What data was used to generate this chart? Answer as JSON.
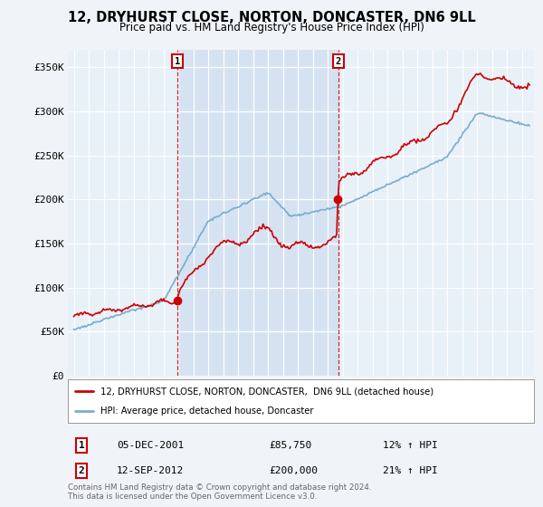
{
  "title": "12, DRYHURST CLOSE, NORTON, DONCASTER, DN6 9LL",
  "subtitle": "Price paid vs. HM Land Registry's House Price Index (HPI)",
  "ylim": [
    0,
    370000
  ],
  "yticks": [
    0,
    50000,
    100000,
    150000,
    200000,
    250000,
    300000,
    350000
  ],
  "ytick_labels": [
    "£0",
    "£50K",
    "£100K",
    "£150K",
    "£200K",
    "£250K",
    "£300K",
    "£350K"
  ],
  "background_color": "#f0f4f8",
  "plot_bg_color": "#e8f0f8",
  "grid_color": "#ffffff",
  "shade_color": "#ccddf0",
  "sale1_year": 2001.92,
  "sale1_price": 85750,
  "sale2_year": 2012.71,
  "sale2_price": 200000,
  "red_color": "#cc0000",
  "blue_color": "#7aaccc",
  "legend_label1": "12, DRYHURST CLOSE, NORTON, DONCASTER,  DN6 9LL (detached house)",
  "legend_label2": "HPI: Average price, detached house, Doncaster",
  "footer": "Contains HM Land Registry data © Crown copyright and database right 2024.\nThis data is licensed under the Open Government Licence v3.0.",
  "table_row1": [
    "1",
    "05-DEC-2001",
    "£85,750",
    "12% ↑ HPI"
  ],
  "table_row2": [
    "2",
    "12-SEP-2012",
    "£200,000",
    "21% ↑ HPI"
  ],
  "xmin": 1994.6,
  "xmax": 2025.8
}
